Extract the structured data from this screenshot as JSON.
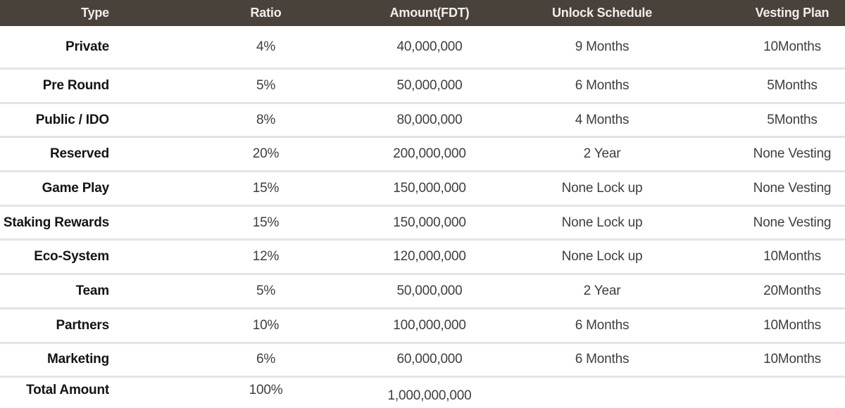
{
  "colors": {
    "header_bg": "#49423b",
    "header_text": "#f1eeea",
    "divider": "#e4e4e4",
    "row_bg": "#ffffff",
    "type_text": "#141414",
    "cell_text": "#3e3e3e"
  },
  "chart_data": {
    "type": "table",
    "columns": [
      {
        "key": "type",
        "label": "Type"
      },
      {
        "key": "ratio",
        "label": "Ratio"
      },
      {
        "key": "amount",
        "label": "Amount(FDT)"
      },
      {
        "key": "unlock",
        "label": "Unlock Schedule"
      },
      {
        "key": "vesting",
        "label": "Vesting Plan"
      }
    ],
    "rows": [
      {
        "type": "Private",
        "ratio": "4%",
        "ratio_percent": 4,
        "amount": "40,000,000",
        "amount_fdt": 40000000,
        "unlock": "9 Months",
        "vesting": "10Months"
      },
      {
        "type": "Pre Round",
        "ratio": "5%",
        "ratio_percent": 5,
        "amount": "50,000,000",
        "amount_fdt": 50000000,
        "unlock": "6 Months",
        "vesting": "5Months"
      },
      {
        "type": "Public / IDO",
        "ratio": "8%",
        "ratio_percent": 8,
        "amount": "80,000,000",
        "amount_fdt": 80000000,
        "unlock": "4 Months",
        "vesting": "5Months"
      },
      {
        "type": "Reserved",
        "ratio": "20%",
        "ratio_percent": 20,
        "amount": "200,000,000",
        "amount_fdt": 200000000,
        "unlock": "2 Year",
        "vesting": "None Vesting"
      },
      {
        "type": "Game Play",
        "ratio": "15%",
        "ratio_percent": 15,
        "amount": "150,000,000",
        "amount_fdt": 150000000,
        "unlock": "None Lock up",
        "vesting": "None Vesting"
      },
      {
        "type": "Staking Rewards",
        "ratio": "15%",
        "ratio_percent": 15,
        "amount": "150,000,000",
        "amount_fdt": 150000000,
        "unlock": "None Lock up",
        "vesting": "None Vesting"
      },
      {
        "type": "Eco-System",
        "ratio": "12%",
        "ratio_percent": 12,
        "amount": "120,000,000",
        "amount_fdt": 120000000,
        "unlock": "None Lock up",
        "vesting": "10Months"
      },
      {
        "type": "Team",
        "ratio": "5%",
        "ratio_percent": 5,
        "amount": "50,000,000",
        "amount_fdt": 50000000,
        "unlock": "2 Year",
        "vesting": "20Months"
      },
      {
        "type": "Partners",
        "ratio": "10%",
        "ratio_percent": 10,
        "amount": "100,000,000",
        "amount_fdt": 100000000,
        "unlock": "6 Months",
        "vesting": "10Months"
      },
      {
        "type": "Marketing",
        "ratio": "6%",
        "ratio_percent": 6,
        "amount": "60,000,000",
        "amount_fdt": 60000000,
        "unlock": "6 Months",
        "vesting": "10Months"
      }
    ],
    "total_row": {
      "type": "Total Amount",
      "ratio": "100%",
      "ratio_percent": 100,
      "amount": "1,000,000,000",
      "amount_fdt": 1000000000,
      "unlock": "",
      "vesting": ""
    },
    "legend_position": "none",
    "grid": "horizontal-dividers"
  }
}
